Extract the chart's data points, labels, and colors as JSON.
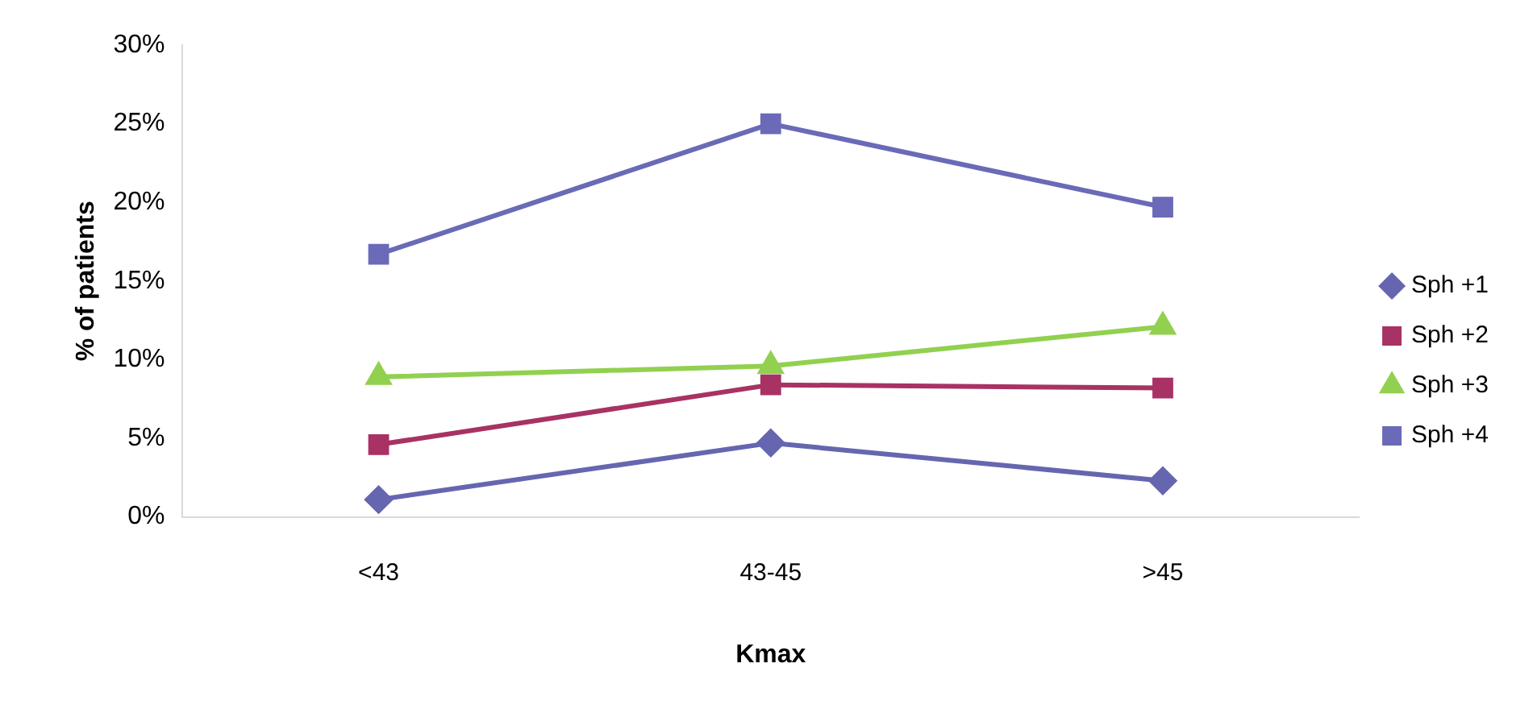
{
  "chart_data": {
    "type": "line",
    "xlabel": "Kmax",
    "ylabel": "% of patients",
    "categories": [
      "<43",
      "43-45",
      ">45"
    ],
    "series": [
      {
        "name": "Sph +1",
        "color": "#6666b0",
        "marker": "diamond",
        "values": [
          1.1,
          4.7,
          2.3
        ]
      },
      {
        "name": "Sph +2",
        "color": "#a83264",
        "marker": "square",
        "values": [
          4.6,
          8.4,
          8.2
        ]
      },
      {
        "name": "Sph +3",
        "color": "#92d050",
        "marker": "triangle",
        "values": [
          8.9,
          9.6,
          12.1
        ]
      },
      {
        "name": "Sph +4",
        "color": "#6a6ab8",
        "marker": "square",
        "values": [
          16.7,
          25,
          19.7
        ]
      }
    ],
    "ylim": [
      0,
      30
    ],
    "yticks": [
      {
        "value": 0,
        "label": "0%"
      },
      {
        "value": 5,
        "label": "5%"
      },
      {
        "value": 10,
        "label": "10%"
      },
      {
        "value": 15,
        "label": "15%"
      },
      {
        "value": 20,
        "label": "20%"
      },
      {
        "value": 25,
        "label": "25%"
      },
      {
        "value": 30,
        "label": "30%"
      }
    ],
    "grid": false,
    "legend": "right",
    "line_style": "solid"
  }
}
